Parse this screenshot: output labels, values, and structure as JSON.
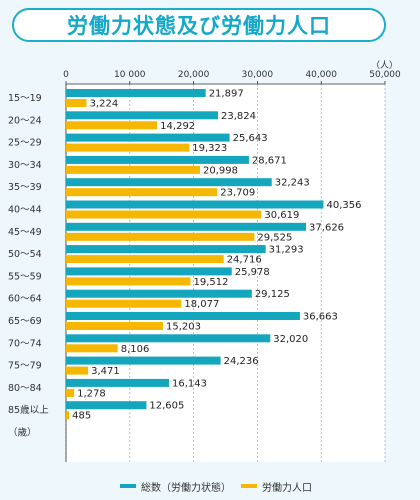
{
  "title": "労働力状態及び労働力人口",
  "colors": {
    "series1": "#13a6bd",
    "series2": "#f5b700",
    "title": "#14a9c8"
  },
  "chart_data": {
    "type": "bar",
    "orientation": "horizontal",
    "unit_label": "（人）",
    "xlim": [
      0,
      50000
    ],
    "xticks": [
      0,
      10000,
      20000,
      30000,
      40000,
      50000
    ],
    "xtick_labels": [
      "0",
      "10 000",
      "20,000",
      "30,000",
      "40,000",
      "50,000"
    ],
    "grid": true,
    "legend_position": "bottom",
    "categories": [
      "15～19",
      "20～24",
      "25～29",
      "30～34",
      "35～39",
      "40～44",
      "45～49",
      "50～54",
      "55～59",
      "60～64",
      "65～69",
      "70～74",
      "75～79",
      "80～84",
      "85歳以上",
      "（歳）"
    ],
    "series": [
      {
        "name": "総数（労働力状態）",
        "values": [
          21897,
          23824,
          25643,
          28671,
          32243,
          40356,
          37626,
          31293,
          25978,
          29125,
          36663,
          32020,
          24236,
          16143,
          12605,
          null
        ],
        "labels": [
          "21,897",
          "23,824",
          "25,643",
          "28,671",
          "32,243",
          "40,356",
          "37,626",
          "31,293",
          "25,978",
          "29,125",
          "36,663",
          "32,020",
          "24,236",
          "16,143",
          "12,605",
          ""
        ]
      },
      {
        "name": "労働力人口",
        "values": [
          3224,
          14292,
          19323,
          20998,
          23709,
          30619,
          29525,
          24716,
          19512,
          18077,
          15203,
          8106,
          3471,
          1278,
          485,
          null
        ],
        "labels": [
          "3,224",
          "14,292",
          "19,323",
          "20,998",
          "23,709",
          "30,619",
          "29,525",
          "24,716",
          "19,512",
          "18,077",
          "15,203",
          "8,106",
          "3,471",
          "1,278",
          "485",
          ""
        ]
      }
    ]
  }
}
